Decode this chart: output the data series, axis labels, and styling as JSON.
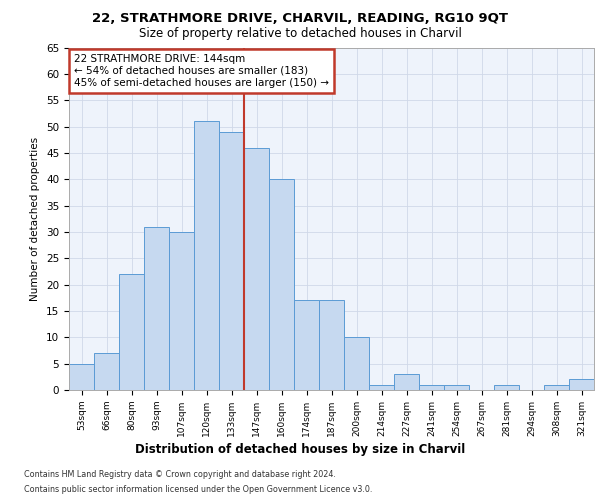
{
  "title": "22, STRATHMORE DRIVE, CHARVIL, READING, RG10 9QT",
  "subtitle": "Size of property relative to detached houses in Charvil",
  "xlabel": "Distribution of detached houses by size in Charvil",
  "ylabel": "Number of detached properties",
  "categories": [
    "53sqm",
    "66sqm",
    "80sqm",
    "93sqm",
    "107sqm",
    "120sqm",
    "133sqm",
    "147sqm",
    "160sqm",
    "174sqm",
    "187sqm",
    "200sqm",
    "214sqm",
    "227sqm",
    "241sqm",
    "254sqm",
    "267sqm",
    "281sqm",
    "294sqm",
    "308sqm",
    "321sqm"
  ],
  "values": [
    5,
    7,
    22,
    31,
    30,
    51,
    49,
    46,
    40,
    17,
    17,
    10,
    1,
    3,
    1,
    1,
    0,
    1,
    0,
    1,
    2
  ],
  "bar_color": "#c6d9f0",
  "bar_edge_color": "#5b9bd5",
  "grid_color": "#d0d8e8",
  "background_color": "#eef3fb",
  "vline_color": "#c0392b",
  "annotation_text": "22 STRATHMORE DRIVE: 144sqm\n← 54% of detached houses are smaller (183)\n45% of semi-detached houses are larger (150) →",
  "annotation_box_color": "#ffffff",
  "annotation_box_edge": "#c0392b",
  "footer1": "Contains HM Land Registry data © Crown copyright and database right 2024.",
  "footer2": "Contains public sector information licensed under the Open Government Licence v3.0.",
  "ylim": [
    0,
    65
  ],
  "yticks": [
    0,
    5,
    10,
    15,
    20,
    25,
    30,
    35,
    40,
    45,
    50,
    55,
    60,
    65
  ]
}
